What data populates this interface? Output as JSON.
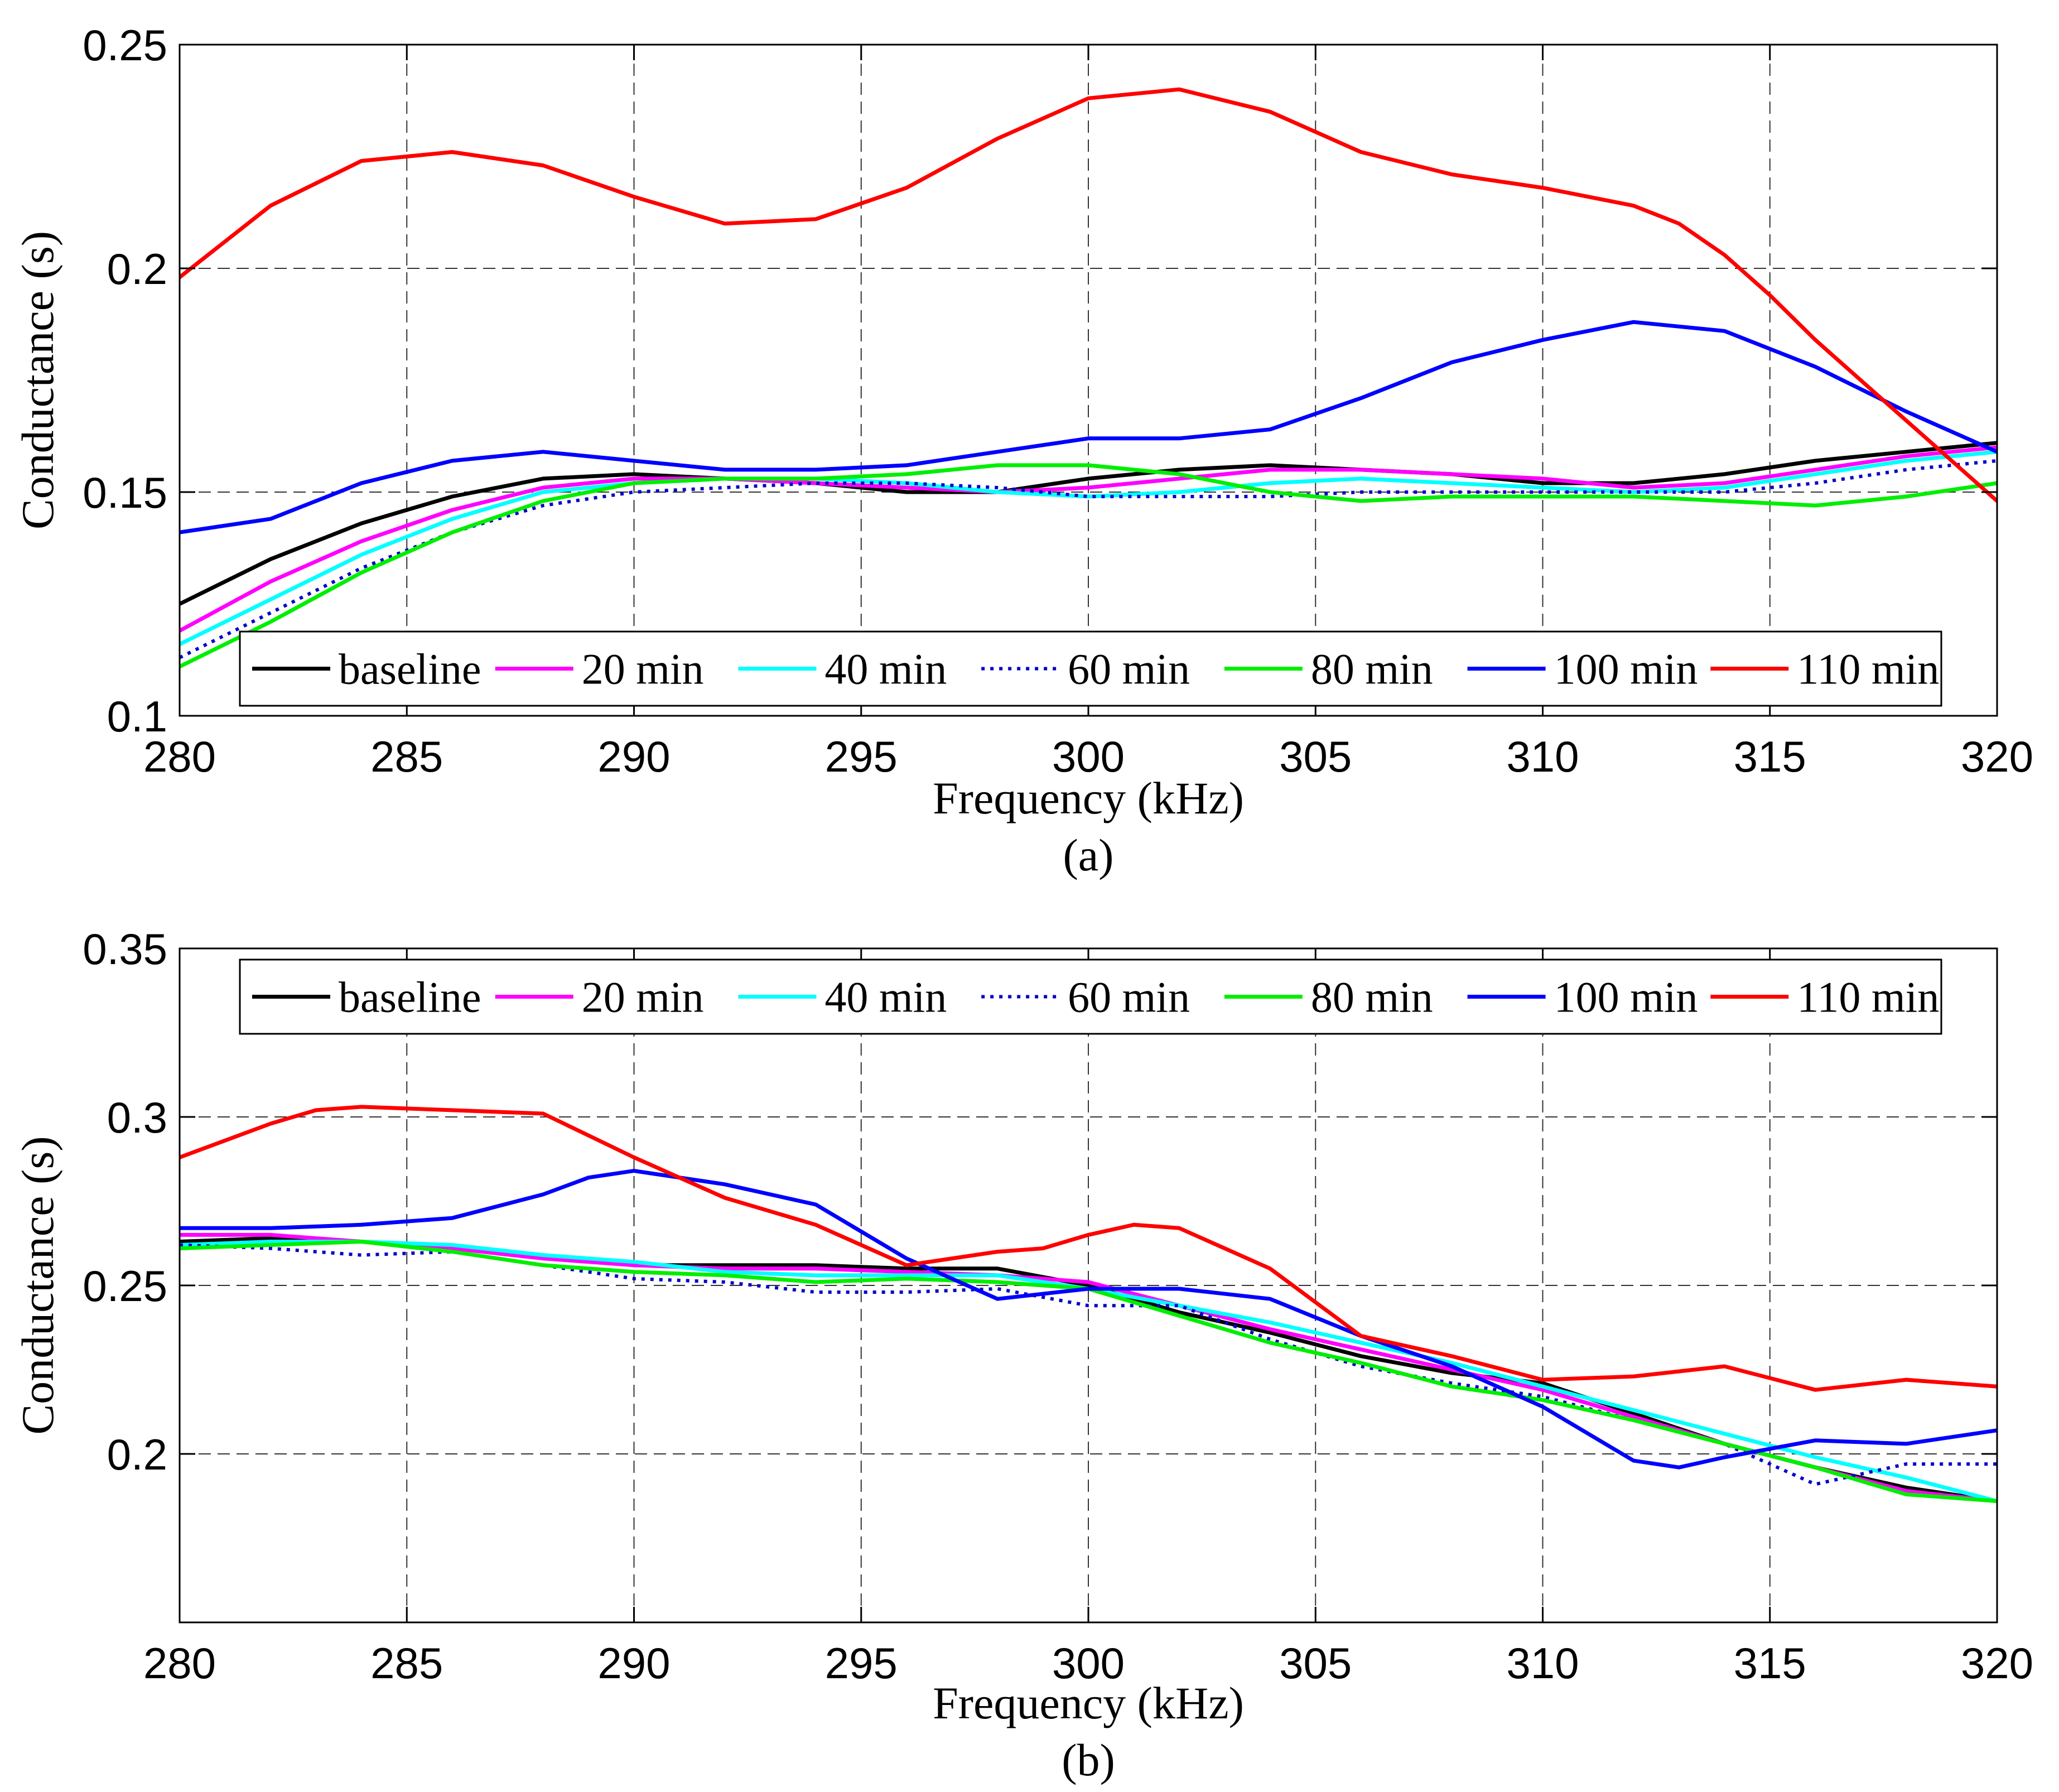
{
  "chart_data": [
    {
      "panel": "(a)",
      "type": "line",
      "caption": "(a)",
      "xlabel": "Frequency (kHz)",
      "ylabel": "Conductance (s)",
      "xlim": [
        280,
        320
      ],
      "ylim": [
        0.1,
        0.25
      ],
      "xticks": [
        280,
        285,
        290,
        295,
        300,
        305,
        310,
        315,
        320
      ],
      "xtick_labels": [
        "280",
        "285",
        "290",
        "295",
        "300",
        "305",
        "310",
        "315",
        "320"
      ],
      "yticks": [
        0.1,
        0.15,
        0.2,
        0.25
      ],
      "ytick_labels": [
        "0.1",
        "0.15",
        "0.2",
        "0.25"
      ],
      "grid": true,
      "legend_position": "bottom",
      "series": [
        {
          "name": "baseline",
          "color": "#000000",
          "dash": "solid",
          "x": [
            280,
            282,
            284,
            286,
            288,
            290,
            292,
            294,
            296,
            298,
            300,
            302,
            304,
            306,
            308,
            310,
            312,
            314,
            316,
            318,
            320
          ],
          "y": [
            0.125,
            0.135,
            0.143,
            0.149,
            0.153,
            0.154,
            0.153,
            0.152,
            0.15,
            0.15,
            0.153,
            0.155,
            0.156,
            0.155,
            0.154,
            0.152,
            0.152,
            0.154,
            0.157,
            0.159,
            0.161
          ]
        },
        {
          "name": "20 min",
          "color": "#ff00ff",
          "dash": "solid",
          "x": [
            280,
            282,
            284,
            286,
            288,
            290,
            292,
            294,
            296,
            298,
            300,
            302,
            304,
            306,
            308,
            310,
            312,
            314,
            316,
            318,
            320
          ],
          "y": [
            0.119,
            0.13,
            0.139,
            0.146,
            0.151,
            0.153,
            0.153,
            0.152,
            0.151,
            0.15,
            0.151,
            0.153,
            0.155,
            0.155,
            0.154,
            0.153,
            0.151,
            0.152,
            0.155,
            0.158,
            0.16
          ]
        },
        {
          "name": "40 min",
          "color": "#00ffff",
          "dash": "solid",
          "x": [
            280,
            282,
            284,
            286,
            288,
            290,
            292,
            294,
            296,
            298,
            300,
            302,
            304,
            306,
            308,
            310,
            312,
            314,
            316,
            318,
            320
          ],
          "y": [
            0.116,
            0.126,
            0.136,
            0.144,
            0.15,
            0.152,
            0.153,
            0.153,
            0.152,
            0.15,
            0.149,
            0.15,
            0.152,
            0.153,
            0.152,
            0.151,
            0.15,
            0.151,
            0.154,
            0.157,
            0.159
          ]
        },
        {
          "name": "60 min",
          "color": "#0000cc",
          "dash": "dotted",
          "x": [
            280,
            282,
            284,
            286,
            288,
            290,
            292,
            294,
            296,
            298,
            300,
            302,
            304,
            306,
            308,
            310,
            312,
            314,
            316,
            318,
            320
          ],
          "y": [
            0.113,
            0.123,
            0.133,
            0.141,
            0.147,
            0.15,
            0.151,
            0.152,
            0.152,
            0.151,
            0.149,
            0.149,
            0.149,
            0.15,
            0.15,
            0.15,
            0.15,
            0.15,
            0.152,
            0.155,
            0.157
          ]
        },
        {
          "name": "80 min",
          "color": "#00ee00",
          "dash": "solid",
          "x": [
            280,
            282,
            284,
            286,
            288,
            290,
            292,
            294,
            296,
            298,
            300,
            302,
            304,
            306,
            308,
            310,
            312,
            314,
            316,
            318,
            320
          ],
          "y": [
            0.111,
            0.121,
            0.132,
            0.141,
            0.148,
            0.152,
            0.153,
            0.153,
            0.154,
            0.156,
            0.156,
            0.154,
            0.15,
            0.148,
            0.149,
            0.149,
            0.149,
            0.148,
            0.147,
            0.149,
            0.152
          ]
        },
        {
          "name": "100 min",
          "color": "#0000ff",
          "dash": "solid",
          "x": [
            280,
            282,
            284,
            286,
            288,
            290,
            292,
            294,
            296,
            298,
            300,
            302,
            304,
            306,
            308,
            310,
            312,
            314,
            316,
            318,
            320
          ],
          "y": [
            0.141,
            0.144,
            0.152,
            0.157,
            0.159,
            0.157,
            0.155,
            0.155,
            0.156,
            0.159,
            0.162,
            0.162,
            0.164,
            0.171,
            0.179,
            0.184,
            0.188,
            0.186,
            0.178,
            0.168,
            0.159
          ]
        },
        {
          "name": "110 min",
          "color": "#ff0000",
          "dash": "solid",
          "x": [
            280,
            282,
            284,
            286,
            288,
            290,
            292,
            294,
            296,
            298,
            300,
            302,
            304,
            306,
            308,
            310,
            312,
            313,
            314,
            315,
            316,
            318,
            320
          ],
          "y": [
            0.198,
            0.214,
            0.224,
            0.226,
            0.223,
            0.216,
            0.21,
            0.211,
            0.218,
            0.229,
            0.238,
            0.24,
            0.235,
            0.226,
            0.221,
            0.218,
            0.214,
            0.21,
            0.203,
            0.194,
            0.184,
            0.166,
            0.148
          ]
        }
      ]
    },
    {
      "panel": "(b)",
      "type": "line",
      "caption": "(b)",
      "xlabel": "Frequency (kHz)",
      "ylabel": "Conductance (s)",
      "xlim": [
        280,
        320
      ],
      "ylim": [
        0.15,
        0.35
      ],
      "xticks": [
        280,
        285,
        290,
        295,
        300,
        305,
        310,
        315,
        320
      ],
      "xtick_labels": [
        "280",
        "285",
        "290",
        "295",
        "300",
        "305",
        "310",
        "315",
        "320"
      ],
      "yticks": [
        0.2,
        0.25,
        0.3,
        0.35
      ],
      "ytick_labels": [
        "0.2",
        "0.25",
        "0.3",
        "0.35"
      ],
      "grid": true,
      "legend_position": "top",
      "series": [
        {
          "name": "baseline",
          "color": "#000000",
          "dash": "solid",
          "x": [
            280,
            282,
            284,
            286,
            288,
            290,
            292,
            294,
            296,
            298,
            300,
            302,
            304,
            306,
            308,
            310,
            312,
            314,
            316,
            318,
            320
          ],
          "y": [
            0.263,
            0.264,
            0.263,
            0.261,
            0.259,
            0.256,
            0.256,
            0.256,
            0.255,
            0.255,
            0.25,
            0.242,
            0.236,
            0.229,
            0.224,
            0.221,
            0.212,
            0.203,
            0.196,
            0.19,
            0.186
          ]
        },
        {
          "name": "20 min",
          "color": "#ff00ff",
          "dash": "solid",
          "x": [
            280,
            282,
            284,
            286,
            288,
            290,
            292,
            294,
            296,
            298,
            300,
            302,
            304,
            306,
            308,
            310,
            312,
            314,
            316,
            318,
            320
          ],
          "y": [
            0.265,
            0.265,
            0.263,
            0.261,
            0.258,
            0.256,
            0.255,
            0.255,
            0.254,
            0.253,
            0.251,
            0.244,
            0.237,
            0.231,
            0.225,
            0.219,
            0.211,
            0.203,
            0.196,
            0.189,
            0.186
          ]
        },
        {
          "name": "40 min",
          "color": "#00ffff",
          "dash": "solid",
          "x": [
            280,
            282,
            284,
            286,
            288,
            290,
            292,
            294,
            296,
            298,
            300,
            302,
            304,
            306,
            308,
            310,
            312,
            314,
            316,
            318,
            320
          ],
          "y": [
            0.262,
            0.263,
            0.263,
            0.262,
            0.259,
            0.257,
            0.254,
            0.253,
            0.253,
            0.253,
            0.249,
            0.244,
            0.239,
            0.233,
            0.227,
            0.22,
            0.213,
            0.206,
            0.199,
            0.193,
            0.186
          ]
        },
        {
          "name": "60 min",
          "color": "#0000cc",
          "dash": "dotted",
          "x": [
            280,
            282,
            284,
            286,
            288,
            290,
            292,
            294,
            296,
            298,
            300,
            302,
            304,
            306,
            308,
            310,
            312,
            314,
            316,
            318,
            320
          ],
          "y": [
            0.262,
            0.261,
            0.259,
            0.26,
            0.256,
            0.252,
            0.251,
            0.248,
            0.248,
            0.249,
            0.244,
            0.244,
            0.234,
            0.226,
            0.221,
            0.217,
            0.21,
            0.203,
            0.191,
            0.197,
            0.197
          ]
        },
        {
          "name": "80 min",
          "color": "#00ee00",
          "dash": "solid",
          "x": [
            280,
            282,
            284,
            286,
            288,
            290,
            292,
            294,
            296,
            298,
            300,
            302,
            304,
            306,
            308,
            310,
            312,
            314,
            316,
            318,
            320
          ],
          "y": [
            0.261,
            0.262,
            0.263,
            0.26,
            0.256,
            0.254,
            0.253,
            0.251,
            0.252,
            0.251,
            0.249,
            0.241,
            0.233,
            0.227,
            0.22,
            0.216,
            0.21,
            0.203,
            0.196,
            0.188,
            0.186
          ]
        },
        {
          "name": "100 min",
          "color": "#0000ff",
          "dash": "solid",
          "x": [
            280,
            282,
            284,
            286,
            288,
            289,
            290,
            292,
            294,
            296,
            298,
            300,
            302,
            304,
            306,
            308,
            310,
            312,
            313,
            314,
            316,
            318,
            320
          ],
          "y": [
            0.267,
            0.267,
            0.268,
            0.27,
            0.277,
            0.282,
            0.284,
            0.28,
            0.274,
            0.258,
            0.246,
            0.249,
            0.249,
            0.246,
            0.235,
            0.226,
            0.214,
            0.198,
            0.196,
            0.199,
            0.204,
            0.203,
            0.207
          ]
        },
        {
          "name": "110 min",
          "color": "#ff0000",
          "dash": "solid",
          "x": [
            280,
            282,
            283,
            284,
            286,
            288,
            290,
            292,
            294,
            296,
            298,
            299,
            300,
            301,
            302,
            304,
            306,
            308,
            310,
            312,
            314,
            316,
            318,
            320
          ],
          "y": [
            0.288,
            0.298,
            0.302,
            0.303,
            0.302,
            0.301,
            0.288,
            0.276,
            0.268,
            0.256,
            0.26,
            0.261,
            0.265,
            0.268,
            0.267,
            0.255,
            0.235,
            0.229,
            0.222,
            0.223,
            0.226,
            0.219,
            0.222,
            0.22
          ]
        }
      ]
    }
  ]
}
